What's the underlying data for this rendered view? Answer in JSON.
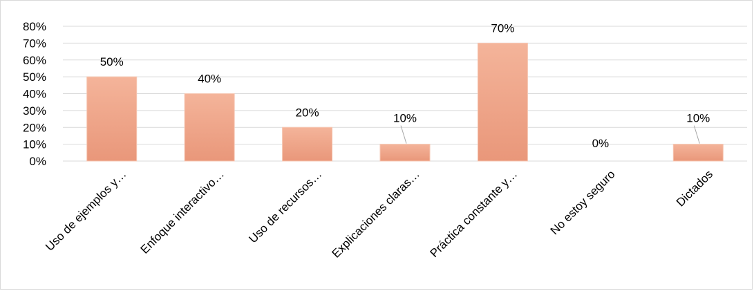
{
  "chart_data": {
    "type": "bar",
    "categories": [
      "Uso de ejemplos y…",
      "Enfoque interactivo…",
      "Uso de recursos…",
      "Explicaciones claras…",
      "Práctica constante y…",
      "No estoy seguro",
      "Dictados"
    ],
    "values": [
      50,
      40,
      20,
      10,
      70,
      0,
      10
    ],
    "data_labels": [
      "50%",
      "40%",
      "20%",
      "10%",
      "70%",
      "0%",
      "10%"
    ],
    "y_ticks": [
      "0%",
      "10%",
      "20%",
      "30%",
      "40%",
      "50%",
      "60%",
      "70%",
      "80%"
    ],
    "ylim": [
      0,
      80
    ],
    "grid": true,
    "legend": "none",
    "colors": {
      "bar_top": "#f4b49a",
      "bar_bottom": "#e9977a",
      "bar_edge": "#f6c6b2",
      "grid": "#d9d9d9",
      "leader_line": "#a6a6a6"
    }
  }
}
